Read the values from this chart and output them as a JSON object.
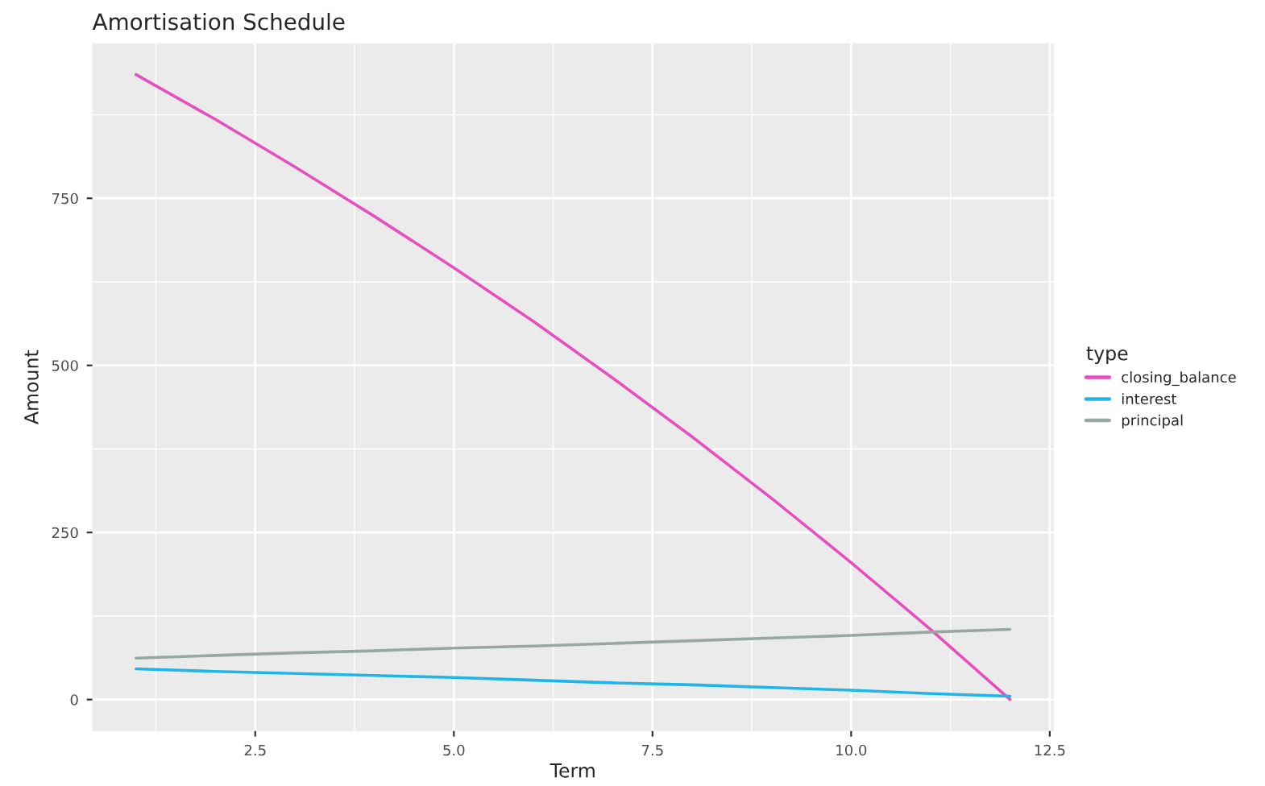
{
  "chart_data": {
    "type": "line",
    "title": "Amortisation Schedule",
    "xlabel": "Term",
    "ylabel": "Amount",
    "legend_title": "type",
    "x": [
      1,
      2,
      3,
      4,
      5,
      6,
      7,
      8,
      9,
      10,
      11,
      12
    ],
    "series": [
      {
        "name": "closing_balance",
        "color": "#e64fbf",
        "values": [
          935,
          868,
          797,
          723,
          646,
          566,
          481,
          393,
          301,
          205,
          105,
          0
        ]
      },
      {
        "name": "interest",
        "color": "#1fb5e8",
        "values": [
          46,
          42,
          39,
          36,
          33,
          29,
          25,
          22,
          18,
          14,
          9,
          5
        ]
      },
      {
        "name": "principal",
        "color": "#97a8a0",
        "values": [
          62,
          66,
          70,
          73,
          77,
          80,
          84,
          88,
          92,
          96,
          101,
          105
        ]
      }
    ],
    "xlim": [
      0.45,
      12.55
    ],
    "xticks": [
      2.5,
      {
        "value": 5,
        "label": "5.0"
      },
      7.5,
      {
        "value": 10,
        "label": "10.0"
      },
      12.5
    ],
    "ylim": [
      -47,
      982
    ],
    "yticks": [
      0,
      250,
      500,
      750
    ],
    "grid": true,
    "legend": "right",
    "marker": "none",
    "line_style": "solid"
  }
}
